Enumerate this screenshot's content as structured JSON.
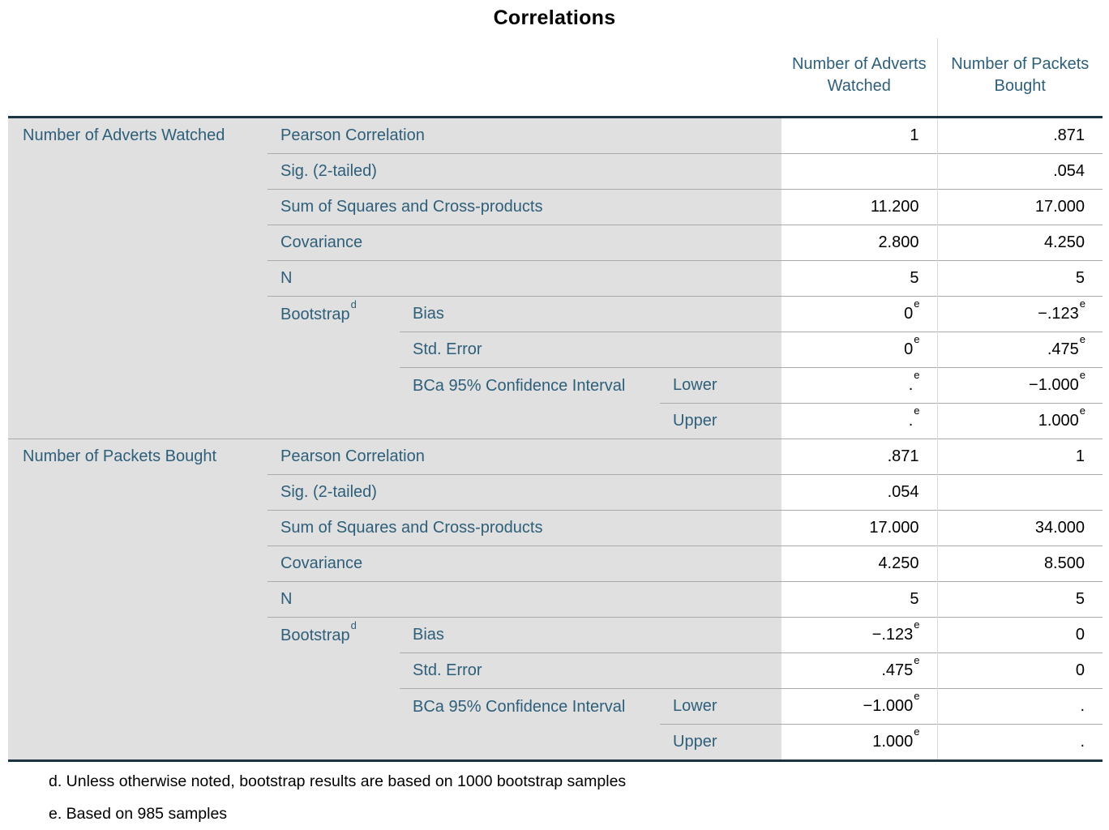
{
  "title": "Correlations",
  "columns": [
    "Number of Adverts Watched",
    "Number of Packets Bought"
  ],
  "blocks": [
    {
      "label": "Number of Adverts Watched",
      "rows": [
        {
          "stat": "Pearson Correlation",
          "v1": "1",
          "v2": ".871"
        },
        {
          "stat": "Sig. (2-tailed)",
          "v1": "",
          "v2": ".054"
        },
        {
          "stat": "Sum of Squares and Cross-products",
          "v1": "11.200",
          "v2": "17.000"
        },
        {
          "stat": "Covariance",
          "v1": "2.800",
          "v2": "4.250"
        },
        {
          "stat": "N",
          "v1": "5",
          "v2": "5"
        }
      ],
      "bootstrap": {
        "label": "Bootstrap",
        "footnote_mark": "d",
        "rows": [
          {
            "stat": "Bias",
            "v1": "0",
            "v1_sup": "e",
            "v2": "−.123",
            "v2_sup": "e"
          },
          {
            "stat": "Std. Error",
            "v1": "0",
            "v1_sup": "e",
            "v2": ".475",
            "v2_sup": "e"
          }
        ],
        "ci": {
          "label": "BCa 95% Confidence Interval",
          "rows": [
            {
              "stat": "Lower",
              "v1": ".",
              "v1_sup": "e",
              "v2": "−1.000",
              "v2_sup": "e"
            },
            {
              "stat": "Upper",
              "v1": ".",
              "v1_sup": "e",
              "v2": "1.000",
              "v2_sup": "e"
            }
          ]
        }
      }
    },
    {
      "label": "Number of Packets Bought",
      "rows": [
        {
          "stat": "Pearson Correlation",
          "v1": ".871",
          "v2": "1"
        },
        {
          "stat": "Sig. (2-tailed)",
          "v1": ".054",
          "v2": ""
        },
        {
          "stat": "Sum of Squares and Cross-products",
          "v1": "17.000",
          "v2": "34.000"
        },
        {
          "stat": "Covariance",
          "v1": "4.250",
          "v2": "8.500"
        },
        {
          "stat": "N",
          "v1": "5",
          "v2": "5"
        }
      ],
      "bootstrap": {
        "label": "Bootstrap",
        "footnote_mark": "d",
        "rows": [
          {
            "stat": "Bias",
            "v1": "−.123",
            "v1_sup": "e",
            "v2": "0"
          },
          {
            "stat": "Std. Error",
            "v1": ".475",
            "v1_sup": "e",
            "v2": "0"
          }
        ],
        "ci": {
          "label": "BCa 95% Confidence Interval",
          "rows": [
            {
              "stat": "Lower",
              "v1": "−1.000",
              "v1_sup": "e",
              "v2": "."
            },
            {
              "stat": "Upper",
              "v1": "1.000",
              "v1_sup": "e",
              "v2": "."
            }
          ]
        }
      }
    }
  ],
  "footnotes": [
    "d. Unless otherwise noted, bootstrap results are based on 1000 bootstrap samples",
    "e. Based on 985 samples"
  ],
  "colors": {
    "label_text": "#2E5F7A",
    "value_text": "#000000",
    "label_background": "#E0E0E0",
    "heavy_border": "#1A3442",
    "row_line": "#ABABAB",
    "column_divider": "#D9D9D9"
  }
}
